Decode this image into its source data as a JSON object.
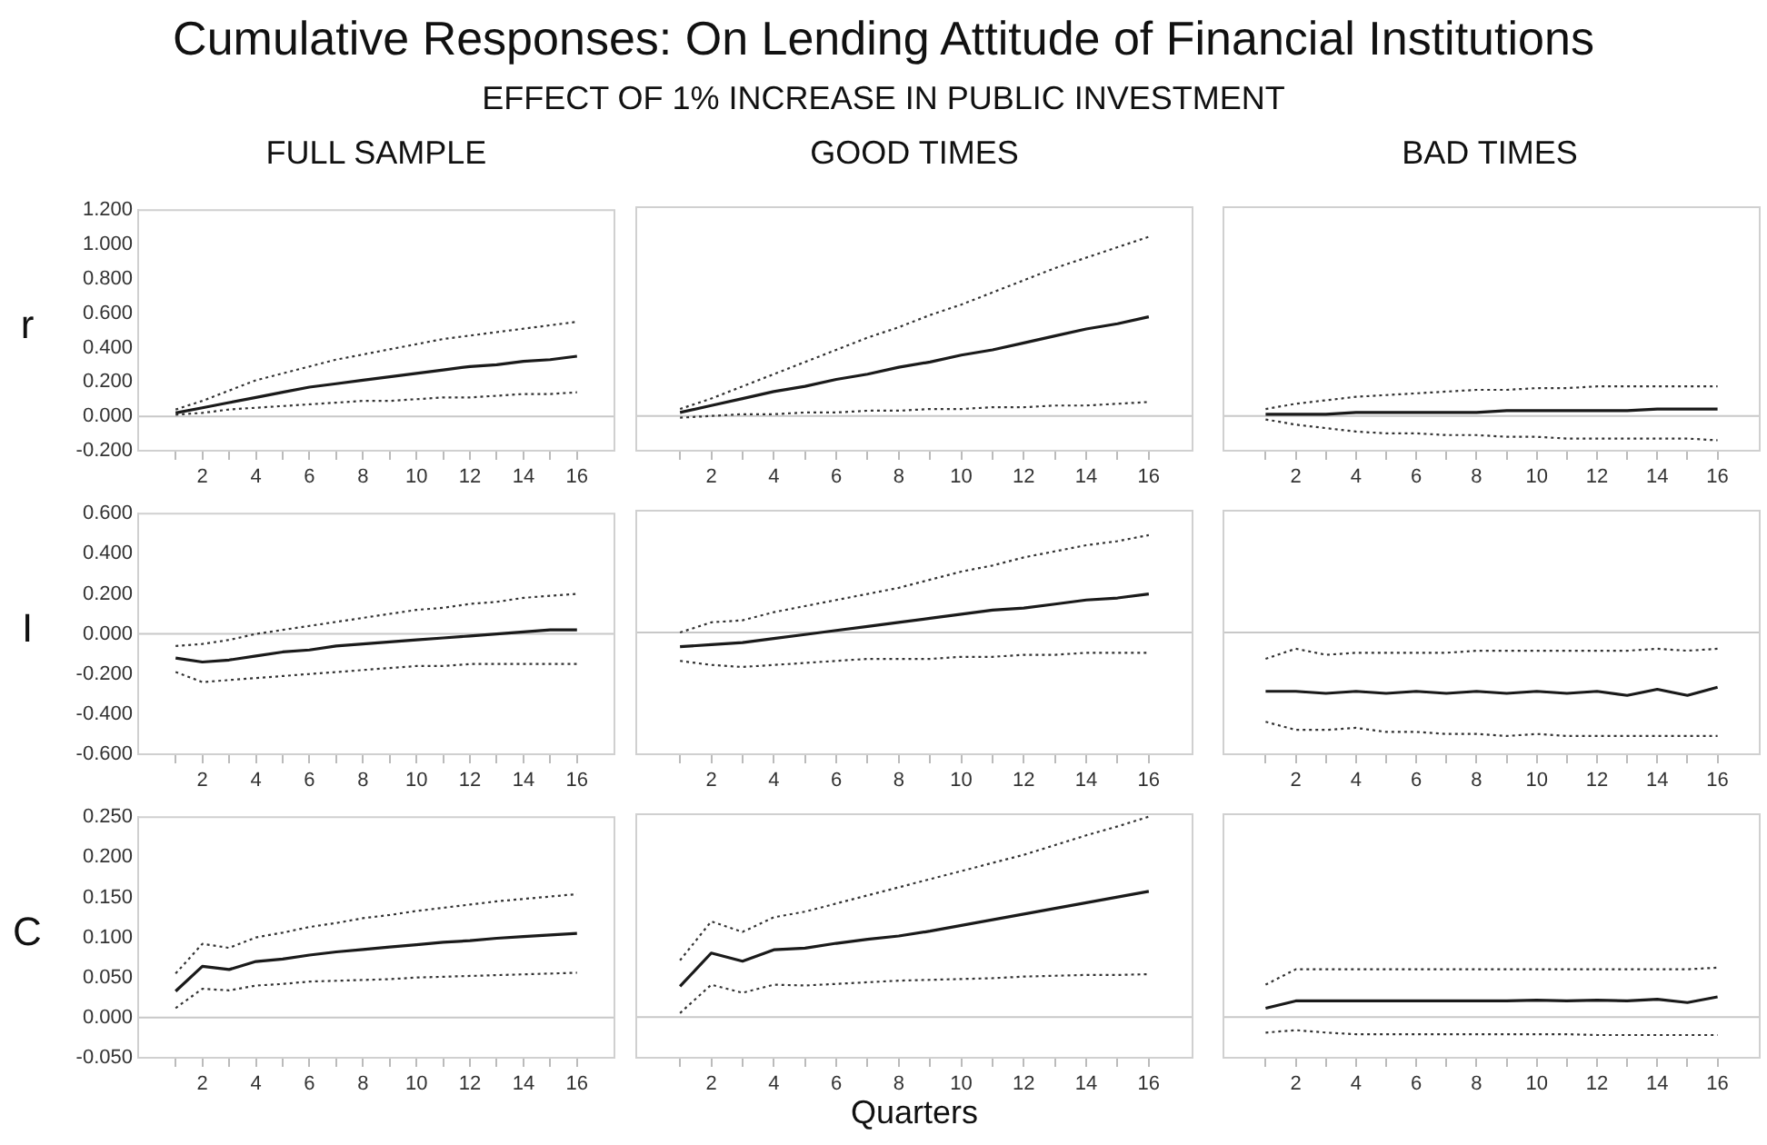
{
  "chart_data": [
    {
      "type": "line",
      "title": "FULL SAMPLE",
      "ylabel": "r",
      "annotations": [
        "Cumulative Responses: On Lending Attitude of Financial Institutions",
        "EFFECT OF 1% INCREASE IN PUBLIC INVESTMENT"
      ],
      "x": [
        1,
        2,
        3,
        4,
        5,
        6,
        7,
        8,
        9,
        10,
        11,
        12,
        13,
        14,
        15,
        16
      ],
      "xlim": [
        -0.4,
        17.4
      ],
      "xticks": [
        {
          "value": 1,
          "label": null
        },
        2,
        {
          "value": 3,
          "label": null
        },
        4,
        {
          "value": 5,
          "label": null
        },
        6,
        {
          "value": 7,
          "label": null
        },
        8,
        {
          "value": 9,
          "label": null
        },
        10,
        {
          "value": 11,
          "label": null
        },
        12,
        {
          "value": 13,
          "label": null
        },
        14,
        {
          "value": 15,
          "label": null
        },
        16
      ],
      "ylim": [
        -0.2,
        1.2
      ],
      "yticks": [
        {
          "value": -0.2,
          "label": "-0.200"
        },
        {
          "value": 0,
          "label": "0.000"
        },
        {
          "value": 0.2,
          "label": "0.200"
        },
        {
          "value": 0.4,
          "label": "0.400"
        },
        {
          "value": 0.6,
          "label": "0.600"
        },
        {
          "value": 0.8,
          "label": "0.800"
        },
        {
          "value": 1.0,
          "label": "1.000"
        },
        {
          "value": 1.2,
          "label": "1.200"
        }
      ],
      "marker": "none",
      "ref_lines": [
        {
          "axis": "y",
          "value": 0,
          "color": "#c8c8c8"
        }
      ],
      "series": [
        {
          "color": "#1a1a1a",
          "line_style": "solid",
          "values": [
            0.02,
            0.05,
            0.08,
            0.11,
            0.14,
            0.17,
            0.19,
            0.21,
            0.23,
            0.25,
            0.27,
            0.29,
            0.3,
            0.32,
            0.33,
            0.35
          ]
        },
        {
          "color": "#333333",
          "line_style": "dotted",
          "values": [
            0.04,
            0.09,
            0.15,
            0.21,
            0.25,
            0.29,
            0.33,
            0.36,
            0.39,
            0.42,
            0.45,
            0.47,
            0.49,
            0.51,
            0.53,
            0.55
          ]
        },
        {
          "color": "#333333",
          "line_style": "dotted",
          "values": [
            0.01,
            0.02,
            0.04,
            0.05,
            0.06,
            0.07,
            0.08,
            0.09,
            0.09,
            0.1,
            0.11,
            0.11,
            0.12,
            0.13,
            0.13,
            0.14
          ]
        }
      ]
    },
    {
      "type": "line",
      "title": "GOOD TIMES",
      "tick_labels": "x",
      "x": [
        1,
        2,
        3,
        4,
        5,
        6,
        7,
        8,
        9,
        10,
        11,
        12,
        13,
        14,
        15,
        16
      ],
      "xlim": [
        -0.4,
        17.4
      ],
      "xticks": [
        {
          "value": 1,
          "label": null
        },
        2,
        {
          "value": 3,
          "label": null
        },
        4,
        {
          "value": 5,
          "label": null
        },
        6,
        {
          "value": 7,
          "label": null
        },
        8,
        {
          "value": 9,
          "label": null
        },
        10,
        {
          "value": 11,
          "label": null
        },
        12,
        {
          "value": 13,
          "label": null
        },
        14,
        {
          "value": 15,
          "label": null
        },
        16
      ],
      "ylim": [
        -0.2,
        1.2
      ],
      "marker": "none",
      "ref_lines": [
        {
          "axis": "y",
          "value": 0,
          "color": "#c8c8c8"
        }
      ],
      "series": [
        {
          "color": "#1a1a1a",
          "line_style": "solid",
          "values": [
            0.02,
            0.06,
            0.1,
            0.14,
            0.17,
            0.21,
            0.24,
            0.28,
            0.31,
            0.35,
            0.38,
            0.42,
            0.46,
            0.5,
            0.53,
            0.57
          ]
        },
        {
          "color": "#333333",
          "line_style": "dotted",
          "values": [
            0.04,
            0.1,
            0.17,
            0.24,
            0.31,
            0.38,
            0.45,
            0.51,
            0.58,
            0.64,
            0.71,
            0.78,
            0.85,
            0.91,
            0.97,
            1.03
          ]
        },
        {
          "color": "#333333",
          "line_style": "dotted",
          "values": [
            -0.01,
            0.0,
            0.01,
            0.01,
            0.02,
            0.02,
            0.03,
            0.03,
            0.04,
            0.04,
            0.05,
            0.05,
            0.06,
            0.06,
            0.07,
            0.08
          ]
        }
      ]
    },
    {
      "type": "line",
      "title": "BAD TIMES",
      "tick_labels": "x",
      "x": [
        1,
        2,
        3,
        4,
        5,
        6,
        7,
        8,
        9,
        10,
        11,
        12,
        13,
        14,
        15,
        16
      ],
      "xlim": [
        -0.4,
        17.4
      ],
      "xticks": [
        {
          "value": 1,
          "label": null
        },
        2,
        {
          "value": 3,
          "label": null
        },
        4,
        {
          "value": 5,
          "label": null
        },
        6,
        {
          "value": 7,
          "label": null
        },
        8,
        {
          "value": 9,
          "label": null
        },
        10,
        {
          "value": 11,
          "label": null
        },
        12,
        {
          "value": 13,
          "label": null
        },
        14,
        {
          "value": 15,
          "label": null
        },
        16
      ],
      "ylim": [
        -0.2,
        1.2
      ],
      "marker": "none",
      "ref_lines": [
        {
          "axis": "y",
          "value": 0,
          "color": "#c8c8c8"
        }
      ],
      "series": [
        {
          "color": "#1a1a1a",
          "line_style": "solid",
          "values": [
            0.01,
            0.01,
            0.01,
            0.02,
            0.02,
            0.02,
            0.02,
            0.02,
            0.03,
            0.03,
            0.03,
            0.03,
            0.03,
            0.04,
            0.04,
            0.04
          ]
        },
        {
          "color": "#333333",
          "line_style": "dotted",
          "values": [
            0.04,
            0.07,
            0.09,
            0.11,
            0.12,
            0.13,
            0.14,
            0.15,
            0.15,
            0.16,
            0.16,
            0.17,
            0.17,
            0.17,
            0.17,
            0.17
          ]
        },
        {
          "color": "#333333",
          "line_style": "dotted",
          "values": [
            -0.02,
            -0.05,
            -0.07,
            -0.09,
            -0.1,
            -0.1,
            -0.11,
            -0.11,
            -0.12,
            -0.12,
            -0.13,
            -0.13,
            -0.13,
            -0.13,
            -0.13,
            -0.14
          ]
        }
      ]
    },
    {
      "type": "line",
      "ylabel": "I",
      "x": [
        1,
        2,
        3,
        4,
        5,
        6,
        7,
        8,
        9,
        10,
        11,
        12,
        13,
        14,
        15,
        16
      ],
      "xlim": [
        -0.4,
        17.4
      ],
      "xticks": [
        {
          "value": 1,
          "label": null
        },
        2,
        {
          "value": 3,
          "label": null
        },
        4,
        {
          "value": 5,
          "label": null
        },
        6,
        {
          "value": 7,
          "label": null
        },
        8,
        {
          "value": 9,
          "label": null
        },
        10,
        {
          "value": 11,
          "label": null
        },
        12,
        {
          "value": 13,
          "label": null
        },
        14,
        {
          "value": 15,
          "label": null
        },
        16
      ],
      "ylim": [
        -0.6,
        0.6
      ],
      "yticks": [
        {
          "value": -0.6,
          "label": "-0.600"
        },
        {
          "value": -0.4,
          "label": "-0.400"
        },
        {
          "value": -0.2,
          "label": "-0.200"
        },
        {
          "value": 0,
          "label": "0.000"
        },
        {
          "value": 0.2,
          "label": "0.200"
        },
        {
          "value": 0.4,
          "label": "0.400"
        },
        {
          "value": 0.6,
          "label": "0.600"
        }
      ],
      "marker": "none",
      "ref_lines": [
        {
          "axis": "y",
          "value": 0,
          "color": "#c8c8c8"
        }
      ],
      "series": [
        {
          "color": "#1a1a1a",
          "line_style": "solid",
          "values": [
            -0.12,
            -0.14,
            -0.13,
            -0.11,
            -0.09,
            -0.08,
            -0.06,
            -0.05,
            -0.04,
            -0.03,
            -0.02,
            -0.01,
            0.0,
            0.01,
            0.02,
            0.02
          ]
        },
        {
          "color": "#333333",
          "line_style": "dotted",
          "values": [
            -0.06,
            -0.05,
            -0.03,
            0.0,
            0.02,
            0.04,
            0.06,
            0.08,
            0.1,
            0.12,
            0.13,
            0.15,
            0.16,
            0.18,
            0.19,
            0.2
          ]
        },
        {
          "color": "#333333",
          "line_style": "dotted",
          "values": [
            -0.19,
            -0.24,
            -0.23,
            -0.22,
            -0.21,
            -0.2,
            -0.19,
            -0.18,
            -0.17,
            -0.16,
            -0.16,
            -0.15,
            -0.15,
            -0.15,
            -0.15,
            -0.15
          ]
        }
      ]
    },
    {
      "type": "line",
      "tick_labels": "x",
      "x": [
        1,
        2,
        3,
        4,
        5,
        6,
        7,
        8,
        9,
        10,
        11,
        12,
        13,
        14,
        15,
        16
      ],
      "xlim": [
        -0.4,
        17.4
      ],
      "xticks": [
        {
          "value": 1,
          "label": null
        },
        2,
        {
          "value": 3,
          "label": null
        },
        4,
        {
          "value": 5,
          "label": null
        },
        6,
        {
          "value": 7,
          "label": null
        },
        8,
        {
          "value": 9,
          "label": null
        },
        10,
        {
          "value": 11,
          "label": null
        },
        12,
        {
          "value": 13,
          "label": null
        },
        14,
        {
          "value": 15,
          "label": null
        },
        16
      ],
      "ylim": [
        -0.6,
        0.6
      ],
      "marker": "none",
      "ref_lines": [
        {
          "axis": "y",
          "value": 0,
          "color": "#c8c8c8"
        }
      ],
      "series": [
        {
          "color": "#1a1a1a",
          "line_style": "solid",
          "values": [
            -0.07,
            -0.06,
            -0.05,
            -0.03,
            -0.01,
            0.01,
            0.03,
            0.05,
            0.07,
            0.09,
            0.11,
            0.12,
            0.14,
            0.16,
            0.17,
            0.19
          ]
        },
        {
          "color": "#333333",
          "line_style": "dotted",
          "values": [
            0.0,
            0.05,
            0.06,
            0.1,
            0.13,
            0.16,
            0.19,
            0.22,
            0.26,
            0.3,
            0.33,
            0.37,
            0.4,
            0.43,
            0.45,
            0.48
          ]
        },
        {
          "color": "#333333",
          "line_style": "dotted",
          "values": [
            -0.14,
            -0.16,
            -0.17,
            -0.16,
            -0.15,
            -0.14,
            -0.13,
            -0.13,
            -0.13,
            -0.12,
            -0.12,
            -0.11,
            -0.11,
            -0.1,
            -0.1,
            -0.1
          ]
        }
      ]
    },
    {
      "type": "line",
      "tick_labels": "x",
      "x": [
        1,
        2,
        3,
        4,
        5,
        6,
        7,
        8,
        9,
        10,
        11,
        12,
        13,
        14,
        15,
        16
      ],
      "xlim": [
        -0.4,
        17.4
      ],
      "xticks": [
        {
          "value": 1,
          "label": null
        },
        2,
        {
          "value": 3,
          "label": null
        },
        4,
        {
          "value": 5,
          "label": null
        },
        6,
        {
          "value": 7,
          "label": null
        },
        8,
        {
          "value": 9,
          "label": null
        },
        10,
        {
          "value": 11,
          "label": null
        },
        12,
        {
          "value": 13,
          "label": null
        },
        14,
        {
          "value": 15,
          "label": null
        },
        16
      ],
      "ylim": [
        -0.6,
        0.6
      ],
      "marker": "none",
      "ref_lines": [
        {
          "axis": "y",
          "value": 0,
          "color": "#c8c8c8"
        }
      ],
      "series": [
        {
          "color": "#1a1a1a",
          "line_style": "solid",
          "values": [
            -0.29,
            -0.29,
            -0.3,
            -0.29,
            -0.3,
            -0.29,
            -0.3,
            -0.29,
            -0.3,
            -0.29,
            -0.3,
            -0.29,
            -0.31,
            -0.28,
            -0.31,
            -0.27
          ]
        },
        {
          "color": "#333333",
          "line_style": "dotted",
          "values": [
            -0.13,
            -0.08,
            -0.11,
            -0.1,
            -0.1,
            -0.1,
            -0.1,
            -0.09,
            -0.09,
            -0.09,
            -0.09,
            -0.09,
            -0.09,
            -0.08,
            -0.09,
            -0.08
          ]
        },
        {
          "color": "#333333",
          "line_style": "dotted",
          "values": [
            -0.44,
            -0.48,
            -0.48,
            -0.47,
            -0.49,
            -0.49,
            -0.5,
            -0.5,
            -0.51,
            -0.5,
            -0.51,
            -0.51,
            -0.51,
            -0.51,
            -0.51,
            -0.51
          ]
        }
      ]
    },
    {
      "type": "line",
      "ylabel": "C",
      "x": [
        1,
        2,
        3,
        4,
        5,
        6,
        7,
        8,
        9,
        10,
        11,
        12,
        13,
        14,
        15,
        16
      ],
      "xlim": [
        -0.4,
        17.4
      ],
      "xticks": [
        {
          "value": 1,
          "label": null
        },
        2,
        {
          "value": 3,
          "label": null
        },
        4,
        {
          "value": 5,
          "label": null
        },
        6,
        {
          "value": 7,
          "label": null
        },
        8,
        {
          "value": 9,
          "label": null
        },
        10,
        {
          "value": 11,
          "label": null
        },
        12,
        {
          "value": 13,
          "label": null
        },
        14,
        {
          "value": 15,
          "label": null
        },
        16
      ],
      "ylim": [
        -0.05,
        0.25
      ],
      "yticks": [
        {
          "value": -0.05,
          "label": "-0.050"
        },
        {
          "value": 0,
          "label": "0.000"
        },
        {
          "value": 0.05,
          "label": "0.050"
        },
        {
          "value": 0.1,
          "label": "0.100"
        },
        {
          "value": 0.15,
          "label": "0.150"
        },
        {
          "value": 0.2,
          "label": "0.200"
        },
        {
          "value": 0.25,
          "label": "0.250"
        }
      ],
      "marker": "none",
      "ref_lines": [
        {
          "axis": "y",
          "value": 0,
          "color": "#c8c8c8"
        }
      ],
      "series": [
        {
          "color": "#1a1a1a",
          "line_style": "solid",
          "values": [
            0.033,
            0.064,
            0.06,
            0.07,
            0.073,
            0.078,
            0.082,
            0.085,
            0.088,
            0.091,
            0.094,
            0.096,
            0.099,
            0.101,
            0.103,
            0.105
          ]
        },
        {
          "color": "#333333",
          "line_style": "dotted",
          "values": [
            0.055,
            0.092,
            0.087,
            0.1,
            0.106,
            0.113,
            0.118,
            0.124,
            0.128,
            0.133,
            0.137,
            0.141,
            0.145,
            0.148,
            0.151,
            0.154
          ]
        },
        {
          "color": "#333333",
          "line_style": "dotted",
          "values": [
            0.012,
            0.036,
            0.034,
            0.04,
            0.042,
            0.045,
            0.046,
            0.047,
            0.048,
            0.05,
            0.051,
            0.052,
            0.053,
            0.054,
            0.055,
            0.056
          ]
        }
      ]
    },
    {
      "type": "line",
      "xlabel": "Quarters",
      "tick_labels": "x",
      "x": [
        1,
        2,
        3,
        4,
        5,
        6,
        7,
        8,
        9,
        10,
        11,
        12,
        13,
        14,
        15,
        16
      ],
      "xlim": [
        -0.4,
        17.4
      ],
      "xticks": [
        {
          "value": 1,
          "label": null
        },
        2,
        {
          "value": 3,
          "label": null
        },
        4,
        {
          "value": 5,
          "label": null
        },
        6,
        {
          "value": 7,
          "label": null
        },
        8,
        {
          "value": 9,
          "label": null
        },
        10,
        {
          "value": 11,
          "label": null
        },
        12,
        {
          "value": 13,
          "label": null
        },
        14,
        {
          "value": 15,
          "label": null
        },
        16
      ],
      "ylim": [
        -0.05,
        0.25
      ],
      "marker": "none",
      "ref_lines": [
        {
          "axis": "y",
          "value": 0,
          "color": "#c8c8c8"
        }
      ],
      "series": [
        {
          "color": "#1a1a1a",
          "line_style": "solid",
          "values": [
            0.038,
            0.079,
            0.069,
            0.083,
            0.085,
            0.091,
            0.096,
            0.1,
            0.106,
            0.113,
            0.12,
            0.127,
            0.134,
            0.141,
            0.148,
            0.155
          ]
        },
        {
          "color": "#333333",
          "line_style": "dotted",
          "values": [
            0.07,
            0.118,
            0.105,
            0.123,
            0.13,
            0.14,
            0.15,
            0.16,
            0.17,
            0.18,
            0.19,
            0.2,
            0.212,
            0.224,
            0.235,
            0.247
          ]
        },
        {
          "color": "#333333",
          "line_style": "dotted",
          "values": [
            0.005,
            0.04,
            0.03,
            0.04,
            0.039,
            0.041,
            0.043,
            0.045,
            0.046,
            0.047,
            0.048,
            0.05,
            0.051,
            0.052,
            0.052,
            0.053
          ]
        }
      ]
    },
    {
      "type": "line",
      "tick_labels": "x",
      "x": [
        1,
        2,
        3,
        4,
        5,
        6,
        7,
        8,
        9,
        10,
        11,
        12,
        13,
        14,
        15,
        16
      ],
      "xlim": [
        -0.4,
        17.4
      ],
      "xticks": [
        {
          "value": 1,
          "label": null
        },
        2,
        {
          "value": 3,
          "label": null
        },
        4,
        {
          "value": 5,
          "label": null
        },
        6,
        {
          "value": 7,
          "label": null
        },
        8,
        {
          "value": 9,
          "label": null
        },
        10,
        {
          "value": 11,
          "label": null
        },
        12,
        {
          "value": 13,
          "label": null
        },
        14,
        {
          "value": 15,
          "label": null
        },
        16
      ],
      "ylim": [
        -0.05,
        0.25
      ],
      "marker": "none",
      "ref_lines": [
        {
          "axis": "y",
          "value": 0,
          "color": "#c8c8c8"
        }
      ],
      "series": [
        {
          "color": "#1a1a1a",
          "line_style": "solid",
          "values": [
            0.011,
            0.02,
            0.02,
            0.02,
            0.02,
            0.02,
            0.02,
            0.02,
            0.02,
            0.021,
            0.02,
            0.021,
            0.02,
            0.022,
            0.018,
            0.025
          ]
        },
        {
          "color": "#333333",
          "line_style": "dotted",
          "values": [
            0.04,
            0.059,
            0.059,
            0.059,
            0.059,
            0.059,
            0.059,
            0.059,
            0.059,
            0.059,
            0.059,
            0.059,
            0.059,
            0.059,
            0.059,
            0.061
          ]
        },
        {
          "color": "#333333",
          "line_style": "dotted",
          "values": [
            -0.019,
            -0.016,
            -0.019,
            -0.021,
            -0.021,
            -0.021,
            -0.021,
            -0.021,
            -0.021,
            -0.021,
            -0.021,
            -0.022,
            -0.022,
            -0.022,
            -0.022,
            -0.022
          ]
        }
      ]
    }
  ]
}
